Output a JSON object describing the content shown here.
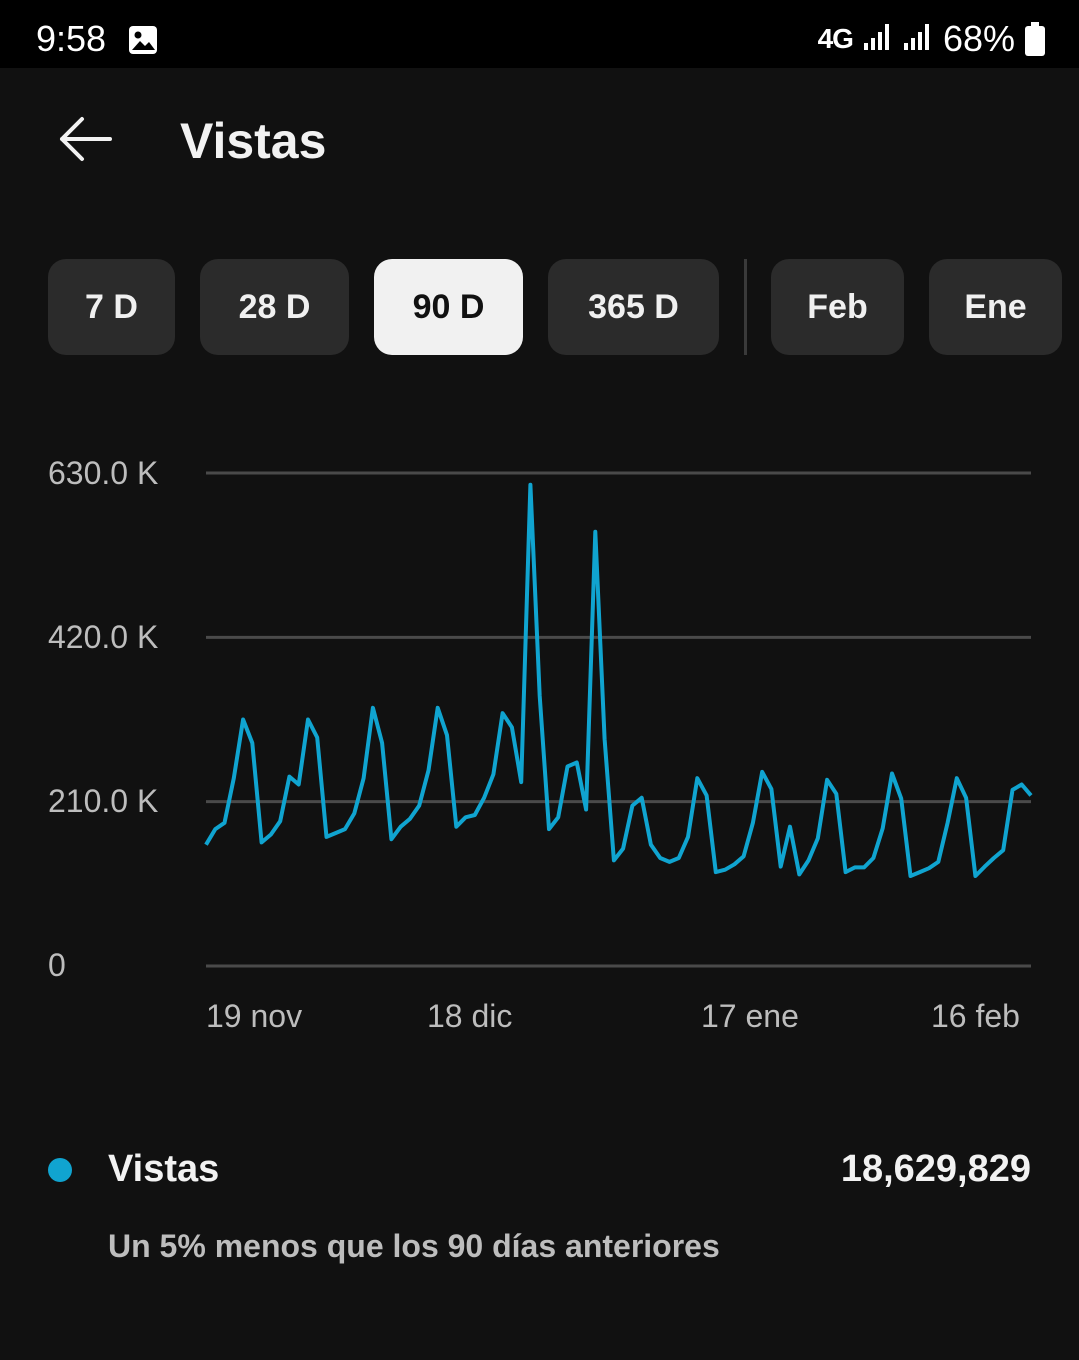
{
  "status": {
    "time": "9:58",
    "network": "4G",
    "battery": "68%"
  },
  "header": {
    "title": "Vistas"
  },
  "ranges": [
    {
      "label": "7 D",
      "selected": false
    },
    {
      "label": "28 D",
      "selected": false
    },
    {
      "label": "90 D",
      "selected": true
    },
    {
      "label": "365 D",
      "selected": false
    },
    {
      "label": "Feb",
      "selected": false
    },
    {
      "label": "Ene",
      "selected": false
    }
  ],
  "chart_data": {
    "type": "line",
    "y_ticks": [
      "630.0 K",
      "420.0 K",
      "210.0 K",
      "0"
    ],
    "ylim": [
      0,
      630000
    ],
    "x_ticks": [
      "19 nov",
      "18 dic",
      "17 ene",
      "16 feb"
    ],
    "series": [
      {
        "name": "Vistas",
        "color": "#10a4d0",
        "values": [
          155000,
          175000,
          183000,
          240000,
          315000,
          285000,
          158000,
          168000,
          185000,
          242000,
          232000,
          315000,
          292000,
          165000,
          170000,
          175000,
          195000,
          240000,
          330000,
          285000,
          162000,
          178000,
          188000,
          205000,
          250000,
          330000,
          295000,
          178000,
          190000,
          193000,
          215000,
          245000,
          323000,
          305000,
          235000,
          615000,
          345000,
          175000,
          190000,
          255000,
          260000,
          200000,
          555000,
          290000,
          135000,
          150000,
          205000,
          215000,
          155000,
          138000,
          133000,
          138000,
          165000,
          240000,
          218000,
          120000,
          123000,
          130000,
          140000,
          183000,
          248000,
          226000,
          127000,
          178000,
          117000,
          135000,
          163000,
          238000,
          220000,
          120000,
          126000,
          126000,
          138000,
          176000,
          246000,
          214000,
          115000,
          120000,
          125000,
          133000,
          183000,
          240000,
          215000,
          115000,
          127000,
          138000,
          148000,
          225000,
          232000,
          218000
        ]
      }
    ]
  },
  "legend": {
    "label": "Vistas",
    "value": "18,629,829",
    "comparison": "Un 5% menos que los 90 días anteriores",
    "dot_color": "#10a4d0"
  }
}
